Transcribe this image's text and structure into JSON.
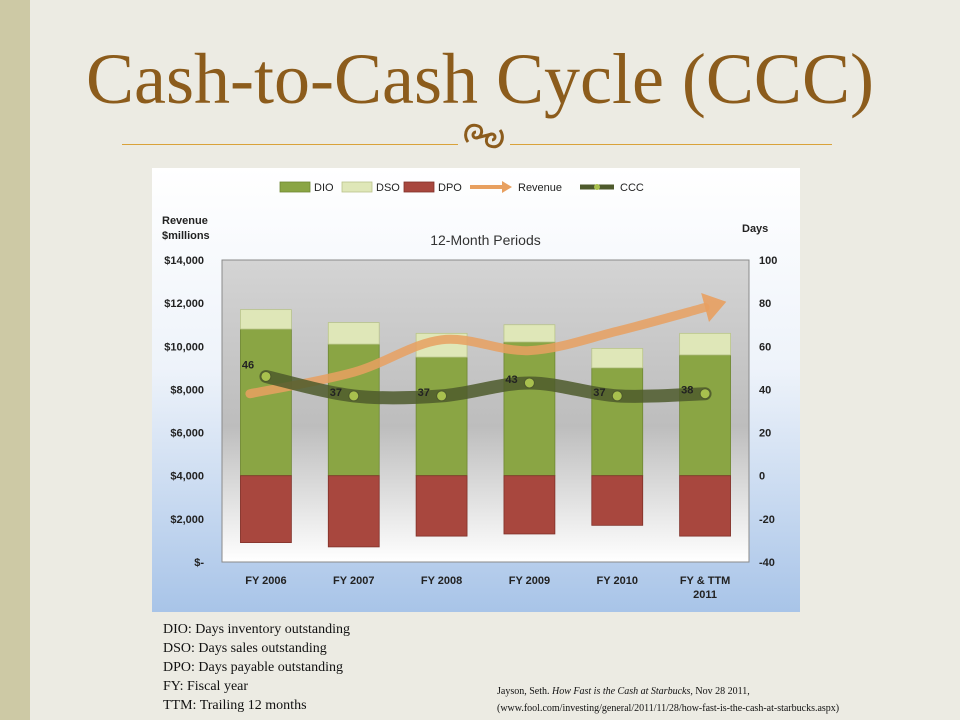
{
  "slide": {
    "title": "Cash-to-Cash Cycle (CCC)",
    "notes": [
      "DIO: Days inventory outstanding",
      "DSO: Days sales outstanding",
      "DPO: Days payable outstanding",
      "FY: Fiscal year",
      "TTM: Trailing 12 months"
    ],
    "citation": {
      "author": "Jayson, Seth. ",
      "work": "How Fast is the Cash at Starbucks,",
      "rest": " Nov 28 2011, (www.fool.com/investing/general/2011/11/28/how-fast-is-the-cash-at-starbucks.aspx)"
    }
  },
  "chart_data": {
    "type": "bar",
    "title": "12-Month Periods",
    "ylabel_left": "Revenue\n$millions",
    "ylabel_right": "Days",
    "categories": [
      "FY 2006",
      "FY 2007",
      "FY 2008",
      "FY 2009",
      "FY 2010",
      "FY & TTM\n2011"
    ],
    "left_axis": {
      "ylim": [
        0,
        14000
      ],
      "ticks": [
        "$-",
        "$2,000",
        "$4,000",
        "$6,000",
        "$8,000",
        "$10,000",
        "$12,000",
        "$14,000"
      ]
    },
    "right_axis": {
      "ylim": [
        -40,
        100
      ],
      "ticks": [
        "-40",
        "-20",
        "0",
        "20",
        "40",
        "60",
        "80",
        "100"
      ]
    },
    "legend": [
      "DIO",
      "DSO",
      "DPO",
      "Revenue",
      "CCC"
    ],
    "legend_position": "top",
    "series": [
      {
        "name": "DIO",
        "axis": "right",
        "kind": "stacked-bar",
        "color": "#8aa544",
        "values": [
          68,
          61,
          55,
          62,
          50,
          56
        ]
      },
      {
        "name": "DSO",
        "axis": "right",
        "kind": "stacked-bar",
        "color": "#dfe7b8",
        "values": [
          9,
          10,
          11,
          8,
          9,
          10
        ]
      },
      {
        "name": "DPO",
        "axis": "right",
        "kind": "negative-bar",
        "color": "#a8473e",
        "values": [
          -31,
          -33,
          -28,
          -27,
          -23,
          -28
        ]
      },
      {
        "name": "Revenue",
        "axis": "left",
        "kind": "line",
        "color": "#e8a060",
        "values": [
          7800,
          8800,
          10300,
          9800,
          10700,
          11800
        ]
      },
      {
        "name": "CCC",
        "axis": "right",
        "kind": "line",
        "color": "#4e5a2c",
        "values": [
          46,
          37,
          37,
          43,
          37,
          38
        ],
        "labels": [
          "46",
          "37",
          "37",
          "43",
          "37",
          "38"
        ]
      }
    ],
    "grid": false
  }
}
